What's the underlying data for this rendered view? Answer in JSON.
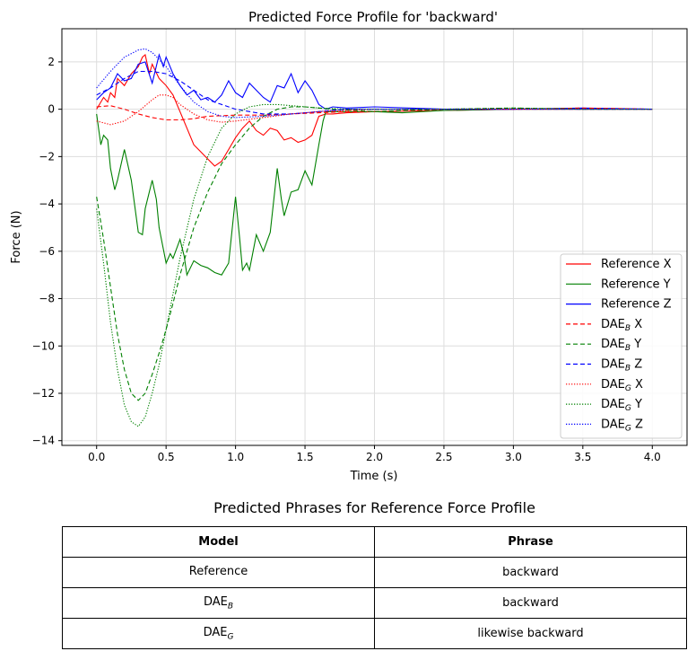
{
  "chart_data": {
    "type": "line",
    "title": "Predicted Force Profile for 'backward'",
    "xlabel": "Time (s)",
    "ylabel": "Force (N)",
    "xlim": [
      -0.25,
      4.25
    ],
    "ylim": [
      -14.2,
      3.4
    ],
    "xticks": [
      0.0,
      0.5,
      1.0,
      1.5,
      2.0,
      2.5,
      3.0,
      3.5,
      4.0
    ],
    "xtick_labels": [
      "0.0",
      "0.5",
      "1.0",
      "1.5",
      "2.0",
      "2.5",
      "3.0",
      "3.5",
      "4.0"
    ],
    "yticks": [
      -14,
      -12,
      -10,
      -8,
      -6,
      -4,
      -2,
      0,
      2
    ],
    "ytick_labels": [
      "−14",
      "−12",
      "−10",
      "−8",
      "−6",
      "−4",
      "−2",
      "0",
      "2"
    ],
    "grid": true,
    "legend_position": "lower-right",
    "colors": {
      "X": "#ff0000",
      "Y": "#008000",
      "Z": "#0000ff"
    },
    "series": [
      {
        "name": "Reference X",
        "legend_base": "Reference X",
        "legend_sub": "",
        "legend_suffix": "",
        "color": "#ff0000",
        "style": "solid",
        "x": [
          0,
          0.05,
          0.08,
          0.1,
          0.13,
          0.15,
          0.2,
          0.25,
          0.3,
          0.33,
          0.35,
          0.38,
          0.4,
          0.45,
          0.5,
          0.55,
          0.6,
          0.65,
          0.7,
          0.75,
          0.8,
          0.85,
          0.9,
          0.95,
          1.0,
          1.05,
          1.1,
          1.15,
          1.2,
          1.25,
          1.3,
          1.35,
          1.4,
          1.45,
          1.5,
          1.55,
          1.6,
          1.65,
          1.7,
          1.8,
          2.0,
          2.5,
          3.0,
          3.5,
          4.0
        ],
        "y": [
          0.0,
          0.5,
          0.3,
          0.7,
          0.5,
          1.3,
          1.0,
          1.5,
          1.8,
          2.2,
          2.3,
          1.5,
          1.9,
          1.3,
          1.0,
          0.6,
          -0.1,
          -0.8,
          -1.5,
          -1.8,
          -2.1,
          -2.4,
          -2.2,
          -1.7,
          -1.2,
          -0.8,
          -0.5,
          -0.9,
          -1.1,
          -0.8,
          -0.9,
          -1.3,
          -1.2,
          -1.4,
          -1.3,
          -1.1,
          -0.3,
          -0.2,
          -0.2,
          -0.15,
          -0.1,
          -0.05,
          0.0,
          0.0,
          0.0
        ]
      },
      {
        "name": "Reference Y",
        "legend_base": "Reference Y",
        "legend_sub": "",
        "legend_suffix": "",
        "color": "#008000",
        "style": "solid",
        "x": [
          0,
          0.03,
          0.05,
          0.08,
          0.1,
          0.13,
          0.15,
          0.2,
          0.25,
          0.3,
          0.33,
          0.35,
          0.4,
          0.43,
          0.45,
          0.5,
          0.53,
          0.55,
          0.6,
          0.63,
          0.65,
          0.7,
          0.75,
          0.8,
          0.85,
          0.9,
          0.95,
          1.0,
          1.03,
          1.05,
          1.08,
          1.1,
          1.15,
          1.2,
          1.25,
          1.3,
          1.33,
          1.35,
          1.4,
          1.45,
          1.5,
          1.55,
          1.6,
          1.63,
          1.65,
          1.7,
          1.8,
          2.0,
          2.2,
          2.5,
          3.0,
          3.5,
          4.0
        ],
        "y": [
          -0.2,
          -1.5,
          -1.1,
          -1.3,
          -2.5,
          -3.4,
          -3.0,
          -1.7,
          -3.0,
          -5.2,
          -5.3,
          -4.2,
          -3.0,
          -3.8,
          -5.0,
          -6.5,
          -6.1,
          -6.3,
          -5.5,
          -6.2,
          -7.0,
          -6.4,
          -6.6,
          -6.7,
          -6.9,
          -7.0,
          -6.5,
          -3.7,
          -5.5,
          -6.8,
          -6.5,
          -6.8,
          -5.3,
          -6.0,
          -5.2,
          -2.5,
          -3.8,
          -4.5,
          -3.5,
          -3.4,
          -2.6,
          -3.2,
          -1.5,
          -0.5,
          -0.1,
          -0.1,
          -0.1,
          -0.1,
          -0.15,
          -0.05,
          0.0,
          0.0,
          0.0
        ]
      },
      {
        "name": "Reference Z",
        "legend_base": "Reference Z",
        "legend_sub": "",
        "legend_suffix": "",
        "color": "#0000ff",
        "style": "solid",
        "x": [
          0,
          0.05,
          0.1,
          0.15,
          0.2,
          0.25,
          0.3,
          0.35,
          0.4,
          0.45,
          0.48,
          0.5,
          0.55,
          0.6,
          0.65,
          0.7,
          0.75,
          0.8,
          0.85,
          0.9,
          0.95,
          1.0,
          1.05,
          1.1,
          1.15,
          1.2,
          1.25,
          1.3,
          1.35,
          1.4,
          1.45,
          1.5,
          1.55,
          1.6,
          1.65,
          1.7,
          1.8,
          2.0,
          2.5,
          3.0,
          3.5,
          4.0
        ],
        "y": [
          0.4,
          0.7,
          0.9,
          1.5,
          1.2,
          1.3,
          1.9,
          2.0,
          1.1,
          2.3,
          1.8,
          2.2,
          1.5,
          1.0,
          0.6,
          0.8,
          0.4,
          0.5,
          0.3,
          0.6,
          1.2,
          0.7,
          0.5,
          1.1,
          0.8,
          0.5,
          0.3,
          1.0,
          0.9,
          1.5,
          0.7,
          1.2,
          0.8,
          0.2,
          0.0,
          0.1,
          0.05,
          0.1,
          0.0,
          0.0,
          0.05,
          0.0
        ]
      },
      {
        "name": "DAE_B X",
        "legend_base": "DAE",
        "legend_sub": "B",
        "legend_suffix": " X",
        "color": "#ff0000",
        "style": "dashed",
        "x": [
          0,
          0.1,
          0.2,
          0.3,
          0.4,
          0.5,
          0.6,
          0.7,
          0.8,
          1.0,
          1.2,
          1.4,
          1.6,
          1.8,
          2.0,
          2.5,
          3.0,
          3.5,
          4.0
        ],
        "y": [
          0.1,
          0.15,
          0.0,
          -0.2,
          -0.35,
          -0.45,
          -0.45,
          -0.4,
          -0.3,
          -0.25,
          -0.25,
          -0.2,
          -0.15,
          -0.1,
          -0.1,
          0.0,
          0.0,
          0.05,
          0.0
        ]
      },
      {
        "name": "DAE_B Y",
        "legend_base": "DAE",
        "legend_sub": "B",
        "legend_suffix": " Y",
        "color": "#008000",
        "style": "dashed",
        "x": [
          0,
          0.05,
          0.1,
          0.15,
          0.2,
          0.25,
          0.3,
          0.35,
          0.4,
          0.45,
          0.5,
          0.55,
          0.6,
          0.7,
          0.8,
          0.9,
          1.0,
          1.1,
          1.2,
          1.3,
          1.4,
          1.5,
          1.6,
          1.7,
          2.0,
          2.5,
          3.0,
          3.5,
          4.0
        ],
        "y": [
          -3.7,
          -5.5,
          -7.5,
          -9.5,
          -11.0,
          -12.0,
          -12.3,
          -12.0,
          -11.2,
          -10.3,
          -9.3,
          -8.2,
          -7.0,
          -5.0,
          -3.5,
          -2.3,
          -1.5,
          -0.8,
          -0.3,
          0.0,
          0.1,
          0.1,
          0.05,
          0.0,
          -0.1,
          0.0,
          0.05,
          0.0,
          0.0
        ]
      },
      {
        "name": "DAE_B Z",
        "legend_base": "DAE",
        "legend_sub": "B",
        "legend_suffix": " Z",
        "color": "#0000ff",
        "style": "dashed",
        "x": [
          0,
          0.1,
          0.2,
          0.3,
          0.4,
          0.5,
          0.6,
          0.7,
          0.8,
          1.0,
          1.2,
          1.4,
          1.6,
          1.8,
          2.0,
          2.5,
          3.0,
          3.5,
          4.0
        ],
        "y": [
          0.6,
          0.9,
          1.3,
          1.6,
          1.6,
          1.5,
          1.2,
          0.8,
          0.4,
          0.0,
          -0.2,
          -0.2,
          -0.1,
          0.0,
          0.0,
          0.0,
          0.0,
          0.0,
          0.0
        ]
      },
      {
        "name": "DAE_G X",
        "legend_base": "DAE",
        "legend_sub": "G",
        "legend_suffix": " X",
        "color": "#ff0000",
        "style": "dotted",
        "x": [
          0,
          0.1,
          0.2,
          0.3,
          0.4,
          0.45,
          0.5,
          0.55,
          0.6,
          0.7,
          0.8,
          0.9,
          1.0,
          1.2,
          1.4,
          1.6,
          1.8,
          2.0,
          2.5,
          3.0,
          3.5,
          4.0
        ],
        "y": [
          -0.5,
          -0.65,
          -0.5,
          -0.1,
          0.4,
          0.6,
          0.6,
          0.5,
          0.2,
          -0.2,
          -0.45,
          -0.55,
          -0.5,
          -0.35,
          -0.2,
          -0.1,
          -0.05,
          0.0,
          0.0,
          0.0,
          0.0,
          0.0
        ]
      },
      {
        "name": "DAE_G Y",
        "legend_base": "DAE",
        "legend_sub": "G",
        "legend_suffix": " Y",
        "color": "#008000",
        "style": "dotted",
        "x": [
          0,
          0.05,
          0.1,
          0.15,
          0.2,
          0.25,
          0.3,
          0.35,
          0.4,
          0.45,
          0.5,
          0.55,
          0.6,
          0.7,
          0.8,
          0.9,
          1.0,
          1.1,
          1.2,
          1.3,
          1.4,
          1.5,
          1.6,
          1.8,
          2.0,
          2.5,
          3.0,
          3.5,
          4.0
        ],
        "y": [
          -4.2,
          -6.5,
          -9.0,
          -11.0,
          -12.5,
          -13.2,
          -13.4,
          -13.0,
          -12.0,
          -10.8,
          -9.3,
          -7.8,
          -6.3,
          -3.8,
          -2.0,
          -0.8,
          -0.2,
          0.1,
          0.2,
          0.2,
          0.15,
          0.1,
          0.05,
          0.0,
          0.0,
          0.0,
          0.05,
          0.0,
          0.0
        ]
      },
      {
        "name": "DAE_G Z",
        "legend_base": "DAE",
        "legend_sub": "G",
        "legend_suffix": " Z",
        "color": "#0000ff",
        "style": "dotted",
        "x": [
          0,
          0.1,
          0.2,
          0.3,
          0.35,
          0.4,
          0.5,
          0.6,
          0.7,
          0.8,
          0.9,
          1.0,
          1.2,
          1.4,
          1.6,
          1.8,
          2.0,
          2.5,
          3.0,
          3.5,
          4.0
        ],
        "y": [
          0.9,
          1.6,
          2.2,
          2.5,
          2.55,
          2.4,
          1.8,
          1.0,
          0.3,
          -0.1,
          -0.3,
          -0.35,
          -0.3,
          -0.2,
          -0.1,
          0.0,
          0.0,
          0.0,
          0.0,
          0.0,
          0.0
        ]
      }
    ]
  },
  "table": {
    "title": "Predicted Phrases for Reference Force Profile",
    "headers": {
      "model": "Model",
      "phrase": "Phrase"
    },
    "rows": [
      {
        "model_base": "Reference",
        "model_sub": "",
        "phrase": "backward"
      },
      {
        "model_base": "DAE",
        "model_sub": "B",
        "phrase": "backward"
      },
      {
        "model_base": "DAE",
        "model_sub": "G",
        "phrase": "likewise  backward"
      }
    ]
  }
}
